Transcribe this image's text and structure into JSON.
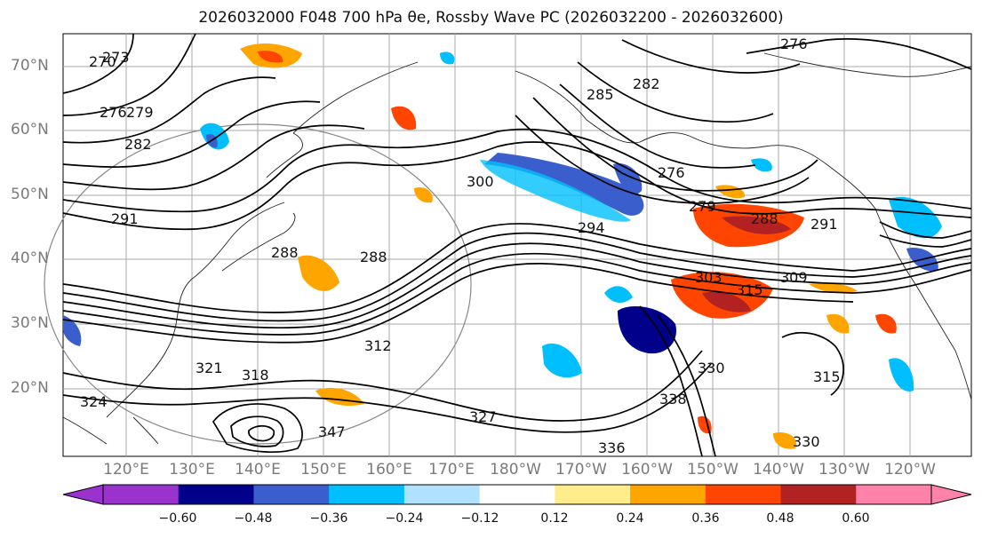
{
  "title": "2026032000 F048 700 hPa θe, Rossby Wave PC (2026032200 - 2026032600)",
  "lat_labels": [
    "70°N",
    "60°N",
    "50°N",
    "40°N",
    "30°N",
    "20°N"
  ],
  "lon_labels": [
    "120°E",
    "130°E",
    "140°E",
    "150°E",
    "160°E",
    "170°E",
    "180°W",
    "170°W",
    "160°W",
    "150°W",
    "140°W",
    "130°W",
    "120°W"
  ],
  "colorbar": {
    "ticks": [
      "−0.60",
      "−0.48",
      "−0.36",
      "−0.24",
      "−0.12",
      "0.12",
      "0.24",
      "0.36",
      "0.48",
      "0.60"
    ],
    "colors": [
      "#9a32cd",
      "#00008b",
      "#3a5fcd",
      "#00bfff",
      "#b0e2ff",
      "#ffffff",
      "#ffec8b",
      "#ffa500",
      "#ff4500",
      "#b22222",
      "#ff82ab"
    ]
  },
  "contour_labels": [
    "276",
    "279",
    "282",
    "285",
    "288",
    "291",
    "294",
    "300",
    "303",
    "309",
    "312",
    "315",
    "318",
    "321",
    "324",
    "327",
    "330",
    "336",
    "338",
    "347",
    "270",
    "273"
  ],
  "colors": {
    "text": "#111111",
    "axis_text": "#7a7a7a",
    "grid": "#aaaaaa",
    "coast": "#222222",
    "contour": "#000000"
  }
}
